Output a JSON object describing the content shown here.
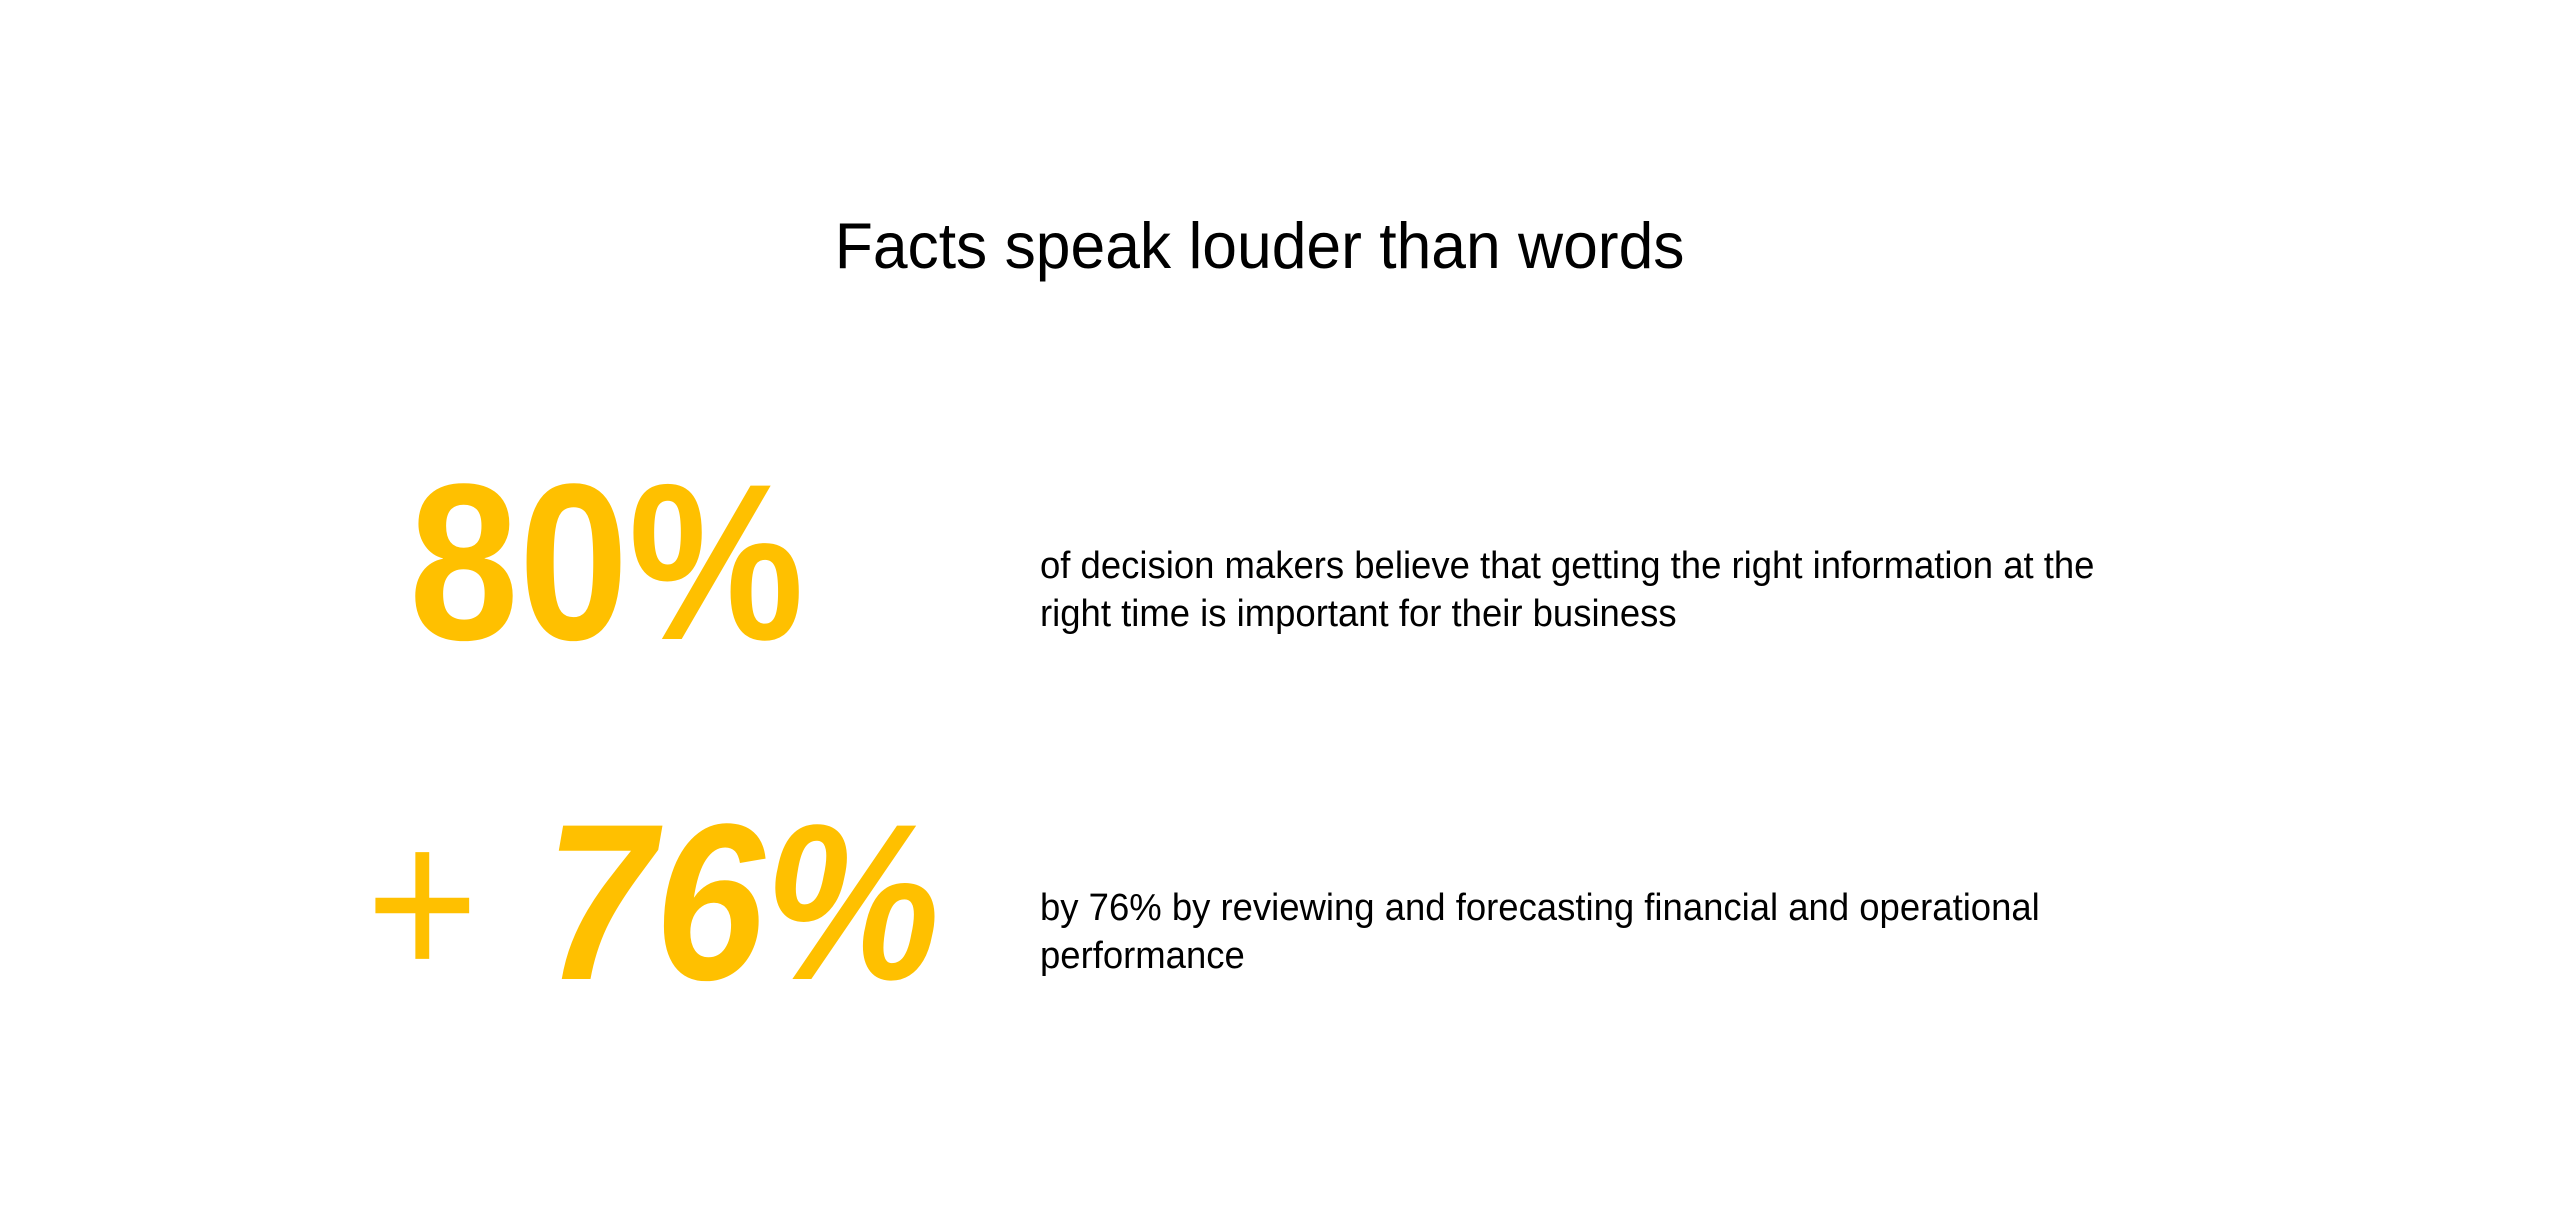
{
  "slide": {
    "background_color": "#FFFFFF",
    "text_color": "#000000",
    "accent_color": "#FFC000",
    "title": "Facts speak louder than words",
    "stats": [
      {
        "value": "80%",
        "description": "of decision makers believe that getting the right information at the\nright time is important for their business"
      },
      {
        "prefix": "+",
        "value": "76%",
        "description": "by 76% by reviewing and forecasting financial and operational\nperformance"
      }
    ]
  }
}
